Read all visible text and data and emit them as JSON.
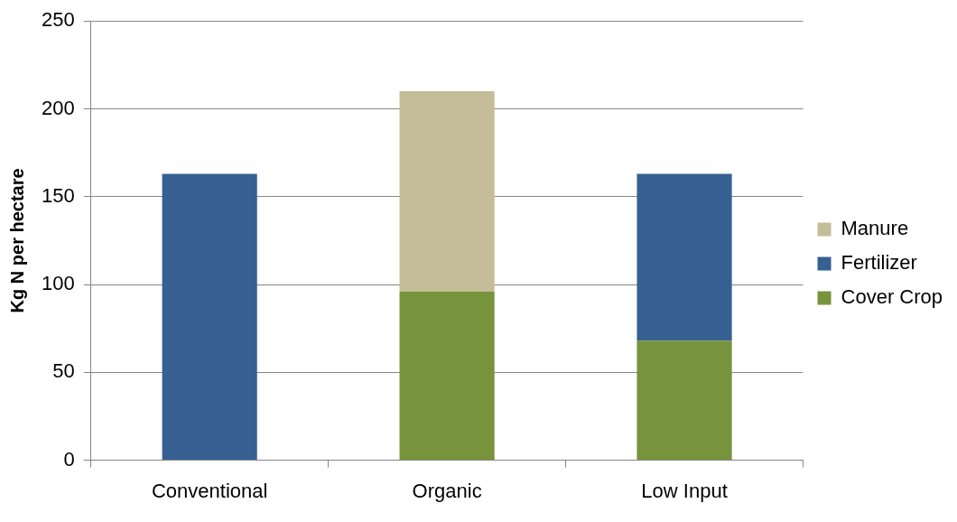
{
  "chart_data": {
    "type": "bar",
    "ylabel": "Kg N per hectare",
    "categories": [
      "Conventional",
      "Organic",
      "Low Input"
    ],
    "stacked": true,
    "series": [
      {
        "name": "Cover Crop",
        "color": "#77933c",
        "values": [
          null,
          96,
          68
        ]
      },
      {
        "name": "Fertilizer",
        "color": "#376092",
        "values": [
          163,
          null,
          95
        ]
      },
      {
        "name": "Manure",
        "color": "#c4bd97",
        "values": [
          null,
          114,
          null
        ]
      }
    ],
    "ylim": [
      0,
      250
    ],
    "yticks": [
      0,
      50,
      100,
      150,
      200,
      250
    ],
    "grid": "y",
    "legend": "right"
  }
}
